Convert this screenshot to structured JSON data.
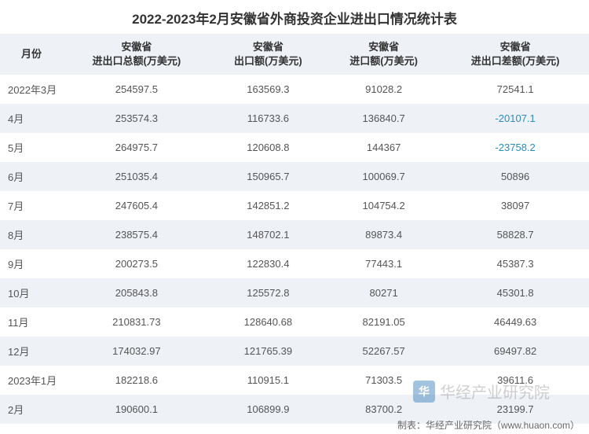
{
  "title": "2022-2023年2月安徽省外商投资企业进出口情况统计表",
  "table": {
    "type": "table",
    "header_bg": "#eef1f6",
    "row_alt_bg": "#eef1f6",
    "row_bg": "#ffffff",
    "text_color": "#555555",
    "header_text_color": "#333333",
    "negative_color": "#2d8cbd",
    "font_size": 13,
    "columns": [
      "月份",
      "安徽省\n进出口总额(万美元)",
      "安徽省\n出口额(万美元)",
      "安徽省\n进口额(万美元)",
      "安徽省\n进出口差额(万美元)"
    ],
    "rows": [
      {
        "month": "2022年3月",
        "total": "254597.5",
        "export": "163569.3",
        "import": "91028.2",
        "balance": "72541.1",
        "neg": false
      },
      {
        "month": "4月",
        "total": "253574.3",
        "export": "116733.6",
        "import": "136840.7",
        "balance": "-20107.1",
        "neg": true
      },
      {
        "month": "5月",
        "total": "264975.7",
        "export": "120608.8",
        "import": "144367",
        "balance": "-23758.2",
        "neg": true
      },
      {
        "month": "6月",
        "total": "251035.4",
        "export": "150965.7",
        "import": "100069.7",
        "balance": "50896",
        "neg": false
      },
      {
        "month": "7月",
        "total": "247605.4",
        "export": "142851.2",
        "import": "104754.2",
        "balance": "38097",
        "neg": false
      },
      {
        "month": "8月",
        "total": "238575.4",
        "export": "148702.1",
        "import": "89873.4",
        "balance": "58828.7",
        "neg": false
      },
      {
        "month": "9月",
        "total": "200273.5",
        "export": "122830.4",
        "import": "77443.1",
        "balance": "45387.3",
        "neg": false
      },
      {
        "month": "10月",
        "total": "205843.8",
        "export": "125572.8",
        "import": "80271",
        "balance": "45301.8",
        "neg": false
      },
      {
        "month": "11月",
        "total": "210831.73",
        "export": "128640.68",
        "import": "82191.05",
        "balance": "46449.63",
        "neg": false
      },
      {
        "month": "12月",
        "total": "174032.97",
        "export": "121765.39",
        "import": "52267.57",
        "balance": "69497.82",
        "neg": false
      },
      {
        "month": "2023年1月",
        "total": "182218.6",
        "export": "110915.1",
        "import": "71303.5",
        "balance": "39611.6",
        "neg": false
      },
      {
        "month": "2月",
        "total": "190600.1",
        "export": "106899.9",
        "import": "83700.2",
        "balance": "23199.7",
        "neg": false
      }
    ]
  },
  "watermark": {
    "text": "华经产业研究院",
    "icon_label": "华"
  },
  "footer": "制表：华经产业研究院（www.huaon.com）"
}
